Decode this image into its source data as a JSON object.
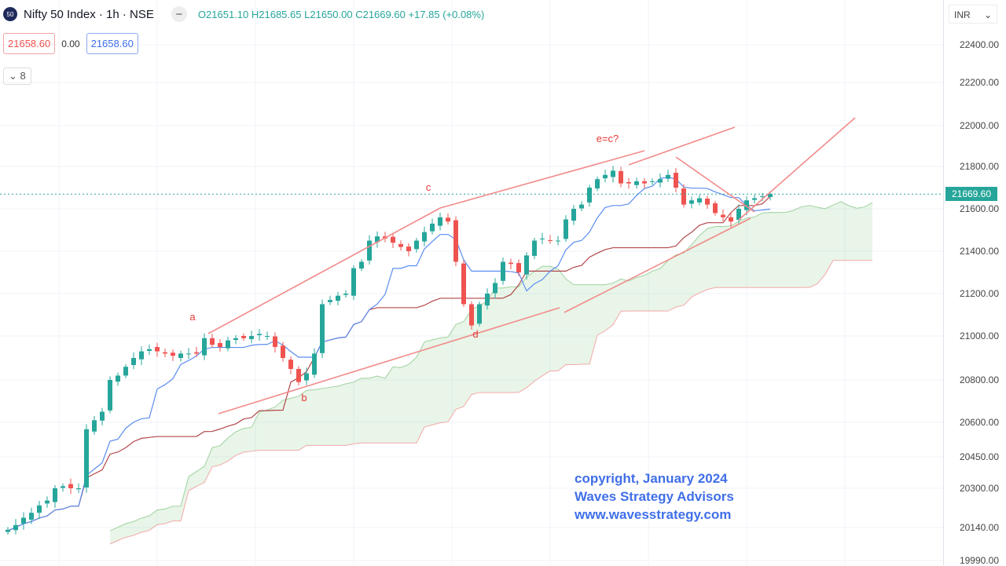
{
  "header": {
    "logo_text": "50",
    "symbol": "Nifty 50 Index · 1h · NSE",
    "open": "O21651.10",
    "high": "H21685.65",
    "low": "L21650.00",
    "close": "C21669.60",
    "change": "+17.85 (+0.08%)"
  },
  "indicator_row": {
    "value_red": "21658.60",
    "diff": "0.00",
    "value_blue": "21658.60"
  },
  "collapse": {
    "label": "8"
  },
  "yaxis": {
    "currency": "INR",
    "current_price": "21669.60"
  },
  "watermark": [
    "copyright, January 2024",
    "Waves Strategy Advisors",
    "www.wavesstrategy.com"
  ],
  "colors": {
    "up": "#26a69a",
    "down": "#ef5350",
    "conversion": "#5b8def",
    "base": "#b3474a",
    "cloud": "#4caf50",
    "trendline": "#f28b8b",
    "labels": "#e53935"
  },
  "chart_data": {
    "type": "candlestick",
    "title": "Nifty 50 Index · 1h · NSE",
    "indicators": [
      "Ichimoku Cloud"
    ],
    "y_ticks": [
      22400,
      22200,
      22000,
      21800,
      21600,
      21400,
      21200,
      21000,
      20800,
      20600,
      20450,
      20300,
      20140,
      19990
    ],
    "ylim": [
      19990,
      22400
    ],
    "grid": true,
    "closes": [
      20130,
      20150,
      20180,
      20200,
      20230,
      20250,
      20300,
      20310,
      20300,
      20300,
      20570,
      20610,
      20650,
      20800,
      20820,
      20860,
      20900,
      20930,
      20940,
      20930,
      20920,
      20910,
      20920,
      20920,
      20920,
      20990,
      20960,
      20950,
      20980,
      20990,
      20990,
      21000,
      21010,
      21000,
      20950,
      20900,
      20850,
      20790,
      20830,
      20920,
      21150,
      21170,
      21190,
      21200,
      21320,
      21350,
      21450,
      21470,
      21460,
      21440,
      21420,
      21400,
      21450,
      21490,
      21530,
      21560,
      21540,
      21350,
      21150,
      21050,
      21150,
      21200,
      21250,
      21350,
      21340,
      21300,
      21380,
      21450,
      21460,
      21450,
      21450,
      21550,
      21600,
      21620,
      21700,
      21740,
      21760,
      21780,
      21720,
      21720,
      21730,
      21720,
      21730,
      21740,
      21760,
      21700,
      21620,
      21640,
      21650,
      21620,
      21580,
      21560,
      21540,
      21600,
      21640,
      21650,
      21660,
      21670
    ],
    "wave_labels": [
      "a",
      "b",
      "c",
      "d",
      "e=c?"
    ]
  }
}
